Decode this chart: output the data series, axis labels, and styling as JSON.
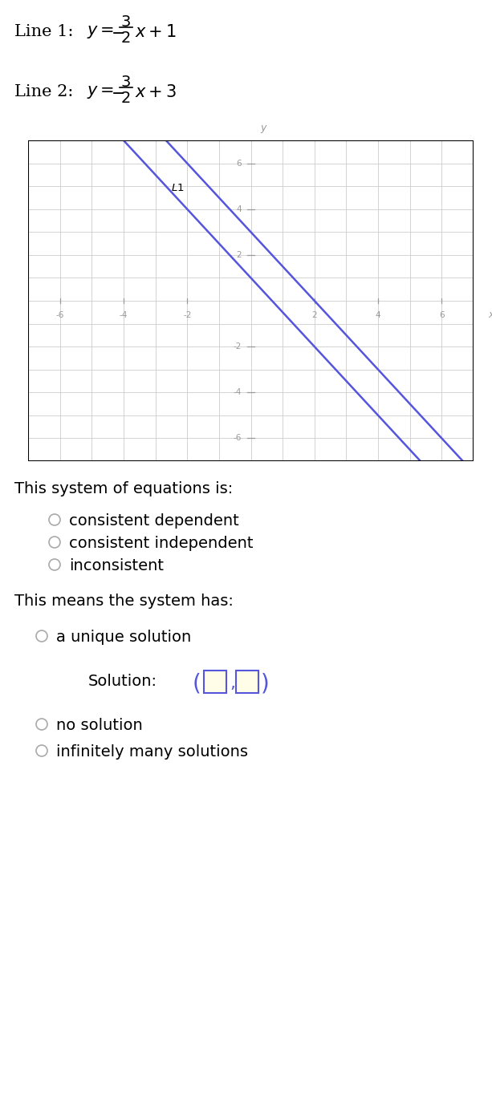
{
  "line1_slope": -1.5,
  "line1_intercept": 1,
  "line2_slope": -1.5,
  "line2_intercept": 3,
  "line_color": "#5555dd",
  "line_width": 1.8,
  "graph_xlim": [
    -7,
    7
  ],
  "graph_ylim": [
    -7,
    7
  ],
  "grid_color": "#cccccc",
  "axis_color": "#999999",
  "tick_values": [
    -6,
    -4,
    -2,
    2,
    4,
    6
  ],
  "question1": "This system of equations is:",
  "options1": [
    "consistent dependent",
    "consistent independent",
    "inconsistent"
  ],
  "question2": "This means the system has:",
  "option_unique": "a unique solution",
  "solution_label": "Solution:",
  "options2_after": [
    "no solution",
    "infinitely many solutions"
  ],
  "background_color": "#ffffff",
  "text_color": "#000000",
  "radio_color": "#aaaaaa",
  "box_fill": "#fffde7",
  "box_edge": "#5555dd"
}
